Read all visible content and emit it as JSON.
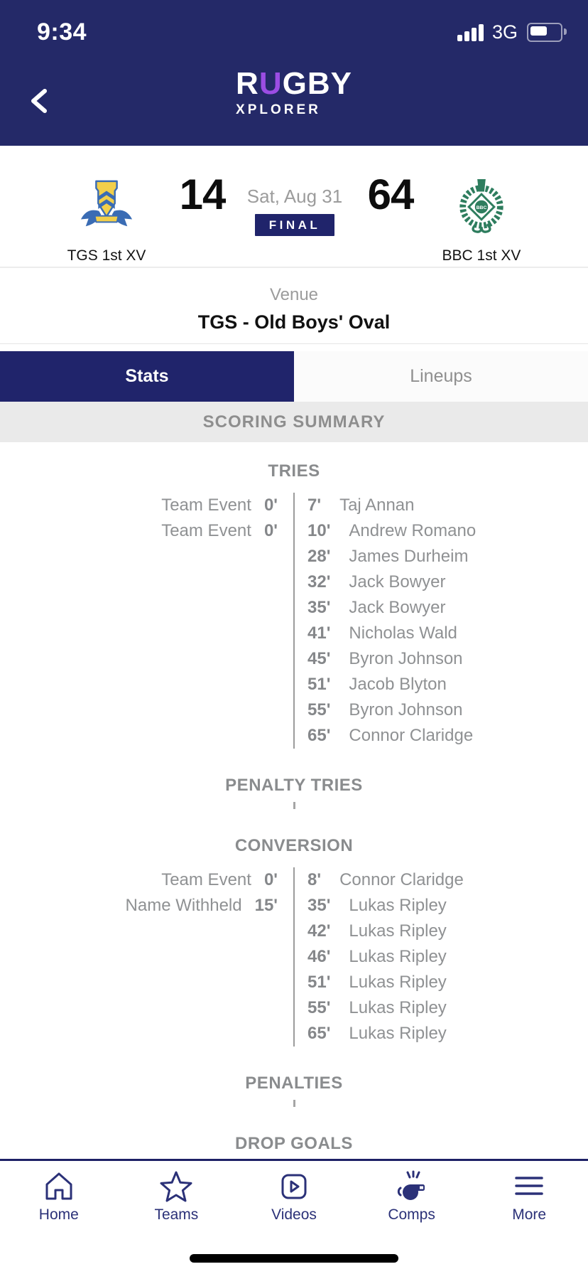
{
  "status_bar": {
    "time": "9:34",
    "network": "3G"
  },
  "header": {
    "logo_part1": "R",
    "logo_part2": "U",
    "logo_part3": "GBY",
    "logo_sub": "XPLORER"
  },
  "match": {
    "home": {
      "name": "TGS 1st XV",
      "score": "14"
    },
    "away": {
      "name": "BBC 1st XV",
      "score": "64",
      "logo_text": "BBC"
    },
    "date": "Sat, Aug 31",
    "status": "FINAL",
    "venue_label": "Venue",
    "venue_name": "TGS - Old Boys' Oval"
  },
  "tabs": [
    {
      "label": "Stats",
      "active": true
    },
    {
      "label": "Lineups",
      "active": false
    }
  ],
  "summary_title": "SCORING SUMMARY",
  "scoring": {
    "sections": [
      {
        "title": "TRIES",
        "home": [
          {
            "label": "Team Event",
            "minute": "0'"
          },
          {
            "label": "Team Event",
            "minute": "0'"
          }
        ],
        "away": [
          {
            "minute": "7'",
            "player": "Taj Annan"
          },
          {
            "minute": "10'",
            "player": "Andrew Romano"
          },
          {
            "minute": "28'",
            "player": "James Durheim"
          },
          {
            "minute": "32'",
            "player": "Jack Bowyer"
          },
          {
            "minute": "35'",
            "player": "Jack Bowyer"
          },
          {
            "minute": "41'",
            "player": "Nicholas Wald"
          },
          {
            "minute": "45'",
            "player": "Byron Johnson"
          },
          {
            "minute": "51'",
            "player": "Jacob Blyton"
          },
          {
            "minute": "55'",
            "player": "Byron Johnson"
          },
          {
            "minute": "65'",
            "player": "Connor Claridge"
          }
        ]
      },
      {
        "title": "PENALTY TRIES",
        "home": [],
        "away": []
      },
      {
        "title": "CONVERSION",
        "home": [
          {
            "label": "Team Event",
            "minute": "0'"
          },
          {
            "label": "Name Withheld",
            "minute": "15'"
          }
        ],
        "away": [
          {
            "minute": "8'",
            "player": "Connor Claridge"
          },
          {
            "minute": "35'",
            "player": "Lukas Ripley"
          },
          {
            "minute": "42'",
            "player": "Lukas Ripley"
          },
          {
            "minute": "46'",
            "player": "Lukas Ripley"
          },
          {
            "minute": "51'",
            "player": "Lukas Ripley"
          },
          {
            "minute": "55'",
            "player": "Lukas Ripley"
          },
          {
            "minute": "65'",
            "player": "Lukas Ripley"
          }
        ]
      },
      {
        "title": "PENALTIES",
        "home": [],
        "away": []
      },
      {
        "title": "DROP GOALS",
        "home": [],
        "away": []
      }
    ]
  },
  "nav": {
    "items": [
      {
        "label": "Home",
        "icon": "home-icon"
      },
      {
        "label": "Teams",
        "icon": "star-icon"
      },
      {
        "label": "Videos",
        "icon": "video-icon"
      },
      {
        "label": "Comps",
        "icon": "whistle-icon"
      },
      {
        "label": "More",
        "icon": "menu-icon"
      }
    ]
  },
  "colors": {
    "navy_header": "#242968",
    "navy_accent": "#20246B",
    "nav_icon_navy": "#2B3178",
    "logo_purple": "#9B4DE3",
    "gray_text": "#8F9193",
    "band_gray": "#EAEAEA",
    "divider_gray": "#9B9B9B",
    "tgs_gold": "#F2CF4A",
    "tgs_blue": "#3A6CB4",
    "bbc_green": "#2E7D5E"
  }
}
